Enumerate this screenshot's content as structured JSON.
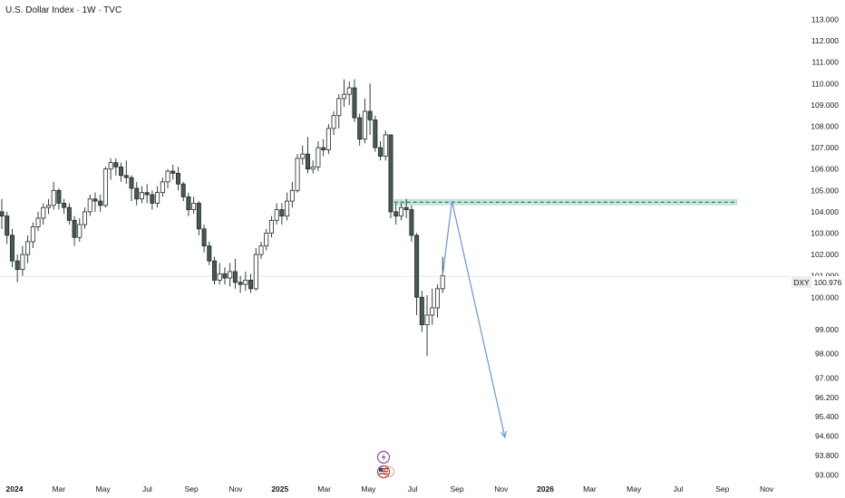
{
  "header": {
    "title": "U.S. Dollar Index · 1W · TVC"
  },
  "price_tag": {
    "symbol": "DXY",
    "value": "100.976"
  },
  "colors": {
    "up_body": "#ffffff",
    "down_body": "#4a5a50",
    "wick": "#1e2a24",
    "zone_fill": "#b8e0d0",
    "zone_line": "#2a5a45",
    "projection": "#6a93d8",
    "price_line": "#e8e8e8",
    "event_icon": "#8e44ad"
  },
  "event_icons": [
    "lightning-event-icon",
    "us-flag-event-icon"
  ],
  "chart_data": {
    "type": "candlestick",
    "title": "U.S. Dollar Index · 1W · TVC",
    "y_axis": {
      "position": "right",
      "ticks": [
        "113.000",
        "112.000",
        "111.000",
        "110.000",
        "109.000",
        "108.000",
        "107.000",
        "106.000",
        "105.000",
        "104.000",
        "103.000",
        "102.000",
        "101.000",
        "100.000",
        "99.000",
        "98.000",
        "97.000",
        "96.200",
        "95.400",
        "94.600",
        "93.800",
        "93.000"
      ],
      "ylim": [
        93.0,
        113.0
      ]
    },
    "x_axis": {
      "ticks": [
        {
          "label": "2024",
          "bold": true
        },
        {
          "label": "Mar",
          "bold": false
        },
        {
          "label": "May",
          "bold": false
        },
        {
          "label": "Jul",
          "bold": false
        },
        {
          "label": "Sep",
          "bold": false
        },
        {
          "label": "Nov",
          "bold": false
        },
        {
          "label": "2025",
          "bold": true
        },
        {
          "label": "Mar",
          "bold": false
        },
        {
          "label": "May",
          "bold": false
        },
        {
          "label": "Jul",
          "bold": false
        },
        {
          "label": "Sep",
          "bold": false
        },
        {
          "label": "Nov",
          "bold": false
        },
        {
          "label": "2026",
          "bold": true
        },
        {
          "label": "Mar",
          "bold": false
        },
        {
          "label": "May",
          "bold": false
        },
        {
          "label": "Jul",
          "bold": false
        },
        {
          "label": "Sep",
          "bold": false
        },
        {
          "label": "Nov",
          "bold": false
        }
      ]
    },
    "last_price": 100.976,
    "resistance_zone": {
      "low": 104.3,
      "high": 104.6
    },
    "projection": [
      {
        "week": 0,
        "price": 101.0
      },
      {
        "week": 2,
        "price": 104.5
      },
      {
        "week": 12,
        "price": 94.55
      }
    ],
    "candles": [
      [
        104.0,
        103.8,
        104.6,
        103.2
      ],
      [
        103.8,
        102.9,
        104.0,
        102.5
      ],
      [
        102.9,
        101.7,
        103.2,
        101.4
      ],
      [
        101.7,
        101.3,
        102.0,
        100.7
      ],
      [
        101.3,
        102.0,
        102.4,
        101.0
      ],
      [
        102.0,
        102.6,
        102.9,
        101.6
      ],
      [
        102.6,
        103.3,
        103.5,
        102.3
      ],
      [
        103.3,
        103.7,
        104.0,
        103.1
      ],
      [
        103.7,
        104.2,
        104.4,
        103.4
      ],
      [
        104.2,
        104.3,
        104.6,
        103.9
      ],
      [
        104.3,
        105.0,
        105.4,
        104.1
      ],
      [
        105.0,
        104.4,
        105.1,
        104.1
      ],
      [
        104.4,
        104.2,
        104.6,
        103.9
      ],
      [
        104.2,
        103.6,
        104.4,
        103.4
      ],
      [
        103.6,
        102.8,
        103.8,
        102.4
      ],
      [
        102.8,
        103.4,
        103.7,
        102.6
      ],
      [
        103.4,
        104.0,
        104.2,
        103.2
      ],
      [
        104.0,
        104.6,
        104.8,
        103.8
      ],
      [
        104.6,
        104.5,
        104.9,
        104.0
      ],
      [
        104.5,
        104.3,
        104.8,
        104.0
      ],
      [
        104.3,
        106.0,
        106.1,
        104.2
      ],
      [
        106.0,
        106.3,
        106.5,
        105.5
      ],
      [
        106.3,
        106.1,
        106.5,
        105.7
      ],
      [
        106.1,
        105.7,
        106.3,
        105.4
      ],
      [
        105.7,
        105.6,
        106.4,
        105.3
      ],
      [
        105.6,
        105.1,
        105.7,
        104.5
      ],
      [
        105.1,
        104.6,
        105.4,
        104.3
      ],
      [
        104.6,
        104.9,
        105.2,
        104.4
      ],
      [
        104.9,
        104.8,
        105.3,
        104.4
      ],
      [
        104.8,
        104.4,
        105.0,
        104.1
      ],
      [
        104.4,
        104.9,
        105.2,
        104.2
      ],
      [
        104.9,
        105.4,
        105.6,
        104.7
      ],
      [
        105.4,
        105.9,
        106.0,
        105.1
      ],
      [
        105.9,
        105.8,
        106.2,
        105.5
      ],
      [
        105.8,
        105.3,
        106.1,
        105.0
      ],
      [
        105.3,
        104.7,
        105.4,
        104.5
      ],
      [
        104.7,
        104.1,
        104.9,
        103.8
      ],
      [
        104.1,
        104.4,
        104.7,
        103.9
      ],
      [
        104.4,
        103.2,
        104.5,
        102.9
      ],
      [
        103.2,
        102.4,
        103.4,
        102.1
      ],
      [
        102.4,
        101.7,
        102.6,
        101.5
      ],
      [
        101.7,
        100.8,
        101.9,
        100.6
      ],
      [
        100.8,
        101.1,
        101.6,
        100.6
      ],
      [
        101.1,
        100.9,
        101.4,
        100.6
      ],
      [
        100.9,
        101.2,
        101.6,
        100.5
      ],
      [
        101.2,
        100.7,
        101.8,
        100.4
      ],
      [
        100.7,
        100.6,
        101.0,
        100.2
      ],
      [
        100.6,
        100.8,
        101.2,
        100.3
      ],
      [
        100.8,
        100.4,
        101.1,
        100.2
      ],
      [
        100.4,
        102.0,
        102.3,
        100.3
      ],
      [
        102.0,
        102.4,
        102.6,
        101.8
      ],
      [
        102.4,
        103.0,
        103.2,
        102.2
      ],
      [
        103.0,
        103.6,
        103.8,
        102.8
      ],
      [
        103.6,
        104.1,
        104.4,
        103.4
      ],
      [
        104.1,
        103.8,
        104.4,
        103.4
      ],
      [
        103.8,
        104.5,
        104.9,
        103.6
      ],
      [
        104.5,
        105.0,
        105.4,
        104.2
      ],
      [
        105.0,
        106.5,
        106.7,
        104.9
      ],
      [
        106.5,
        106.7,
        107.1,
        106.2
      ],
      [
        106.7,
        106.0,
        107.5,
        105.8
      ],
      [
        106.0,
        106.1,
        106.4,
        105.8
      ],
      [
        106.1,
        107.0,
        107.3,
        105.9
      ],
      [
        107.0,
        106.9,
        107.4,
        106.6
      ],
      [
        106.9,
        107.9,
        108.1,
        106.7
      ],
      [
        107.9,
        108.5,
        108.7,
        107.6
      ],
      [
        108.5,
        109.3,
        109.5,
        107.9
      ],
      [
        109.3,
        109.5,
        110.2,
        108.9
      ],
      [
        109.5,
        109.8,
        110.1,
        109.0
      ],
      [
        109.8,
        108.4,
        110.2,
        108.2
      ],
      [
        108.4,
        107.4,
        108.6,
        107.1
      ],
      [
        107.4,
        108.7,
        109.3,
        107.2
      ],
      [
        108.7,
        108.3,
        110.0,
        107.6
      ],
      [
        108.3,
        107.0,
        108.5,
        106.8
      ],
      [
        107.0,
        106.6,
        107.3,
        106.4
      ],
      [
        106.6,
        107.6,
        107.8,
        106.4
      ],
      [
        107.6,
        104.0,
        107.6,
        103.7
      ],
      [
        104.0,
        103.8,
        104.4,
        103.4
      ],
      [
        103.8,
        104.2,
        104.4,
        103.6
      ],
      [
        104.2,
        104.1,
        104.6,
        103.7
      ],
      [
        104.1,
        102.9,
        104.3,
        102.6
      ],
      [
        102.9,
        100.0,
        103.0,
        99.6
      ],
      [
        100.0,
        99.2,
        100.3,
        98.9
      ],
      [
        99.2,
        99.6,
        100.1,
        97.9
      ],
      [
        99.6,
        99.9,
        100.4,
        99.2
      ],
      [
        99.9,
        100.4,
        100.6,
        99.5
      ],
      [
        100.4,
        101.0,
        101.9,
        100.2
      ]
    ]
  }
}
